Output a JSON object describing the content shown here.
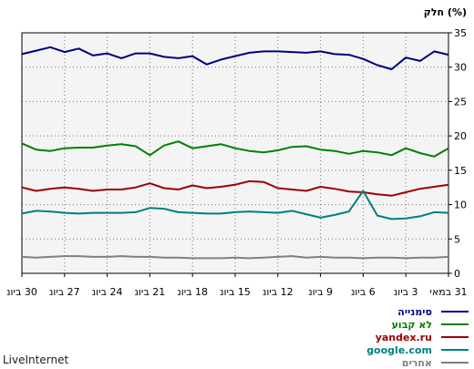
{
  "chart_data": {
    "type": "line",
    "ylabel": "חלק (%)",
    "ylim": [
      0,
      35
    ],
    "yticks": [
      0,
      5,
      10,
      15,
      20,
      25,
      30,
      35
    ],
    "grid": true,
    "x_order": "right-to-left",
    "xticks": [
      "31 במאי",
      "3 ביונ",
      "6 ביונ",
      "9 ביונ",
      "12 ביונ",
      "15 ביונ",
      "18 ביונ",
      "21 ביונ",
      "24 ביונ",
      "27 ביונ",
      "30 ביונ"
    ],
    "legend_position": "bottom-right",
    "series": [
      {
        "name": "סימנייה",
        "color": "#000080",
        "values": [
          31.8,
          32.3,
          30.9,
          31.4,
          29.7,
          30.3,
          31.2,
          31.8,
          31.9,
          32.3,
          32.1,
          32.2,
          32.3,
          32.3,
          32.1,
          31.6,
          31.1,
          30.4,
          31.6,
          31.3,
          31.5,
          32.0,
          32.0,
          31.3,
          32.0,
          31.7,
          32.7,
          32.2,
          32.9,
          32.4,
          31.9
        ]
      },
      {
        "name": "לא קבוע",
        "color": "#008000",
        "values": [
          18.2,
          17.0,
          17.5,
          18.2,
          17.2,
          17.6,
          17.8,
          17.4,
          17.8,
          18.0,
          18.5,
          18.4,
          17.9,
          17.6,
          17.8,
          18.2,
          18.8,
          18.5,
          18.2,
          19.2,
          18.6,
          17.2,
          18.5,
          18.8,
          18.6,
          18.3,
          18.3,
          18.2,
          17.8,
          18.0,
          18.9
        ]
      },
      {
        "name": "yandex.ru",
        "color": "#a00000",
        "values": [
          12.9,
          12.6,
          12.3,
          11.8,
          11.3,
          11.5,
          11.8,
          11.9,
          12.3,
          12.6,
          12.0,
          12.2,
          12.4,
          13.3,
          13.4,
          12.9,
          12.6,
          12.4,
          12.8,
          12.2,
          12.4,
          13.1,
          12.5,
          12.2,
          12.2,
          12.0,
          12.3,
          12.5,
          12.3,
          12.0,
          12.5
        ]
      },
      {
        "name": "google.com",
        "color": "#008080",
        "values": [
          8.8,
          8.9,
          8.3,
          8.0,
          7.9,
          8.4,
          12.0,
          9.0,
          8.5,
          8.1,
          8.6,
          9.1,
          8.8,
          8.9,
          9.0,
          8.9,
          8.7,
          8.7,
          8.8,
          8.9,
          9.4,
          9.5,
          8.9,
          8.8,
          8.8,
          8.8,
          8.7,
          8.8,
          9.0,
          9.1,
          8.7
        ]
      },
      {
        "name": "אחרים",
        "color": "#808080",
        "values": [
          2.4,
          2.3,
          2.3,
          2.2,
          2.3,
          2.3,
          2.2,
          2.3,
          2.3,
          2.4,
          2.3,
          2.5,
          2.4,
          2.3,
          2.2,
          2.3,
          2.2,
          2.2,
          2.2,
          2.3,
          2.3,
          2.4,
          2.4,
          2.5,
          2.4,
          2.4,
          2.5,
          2.5,
          2.4,
          2.3,
          2.4
        ]
      }
    ]
  },
  "footer": "LiveInternet"
}
